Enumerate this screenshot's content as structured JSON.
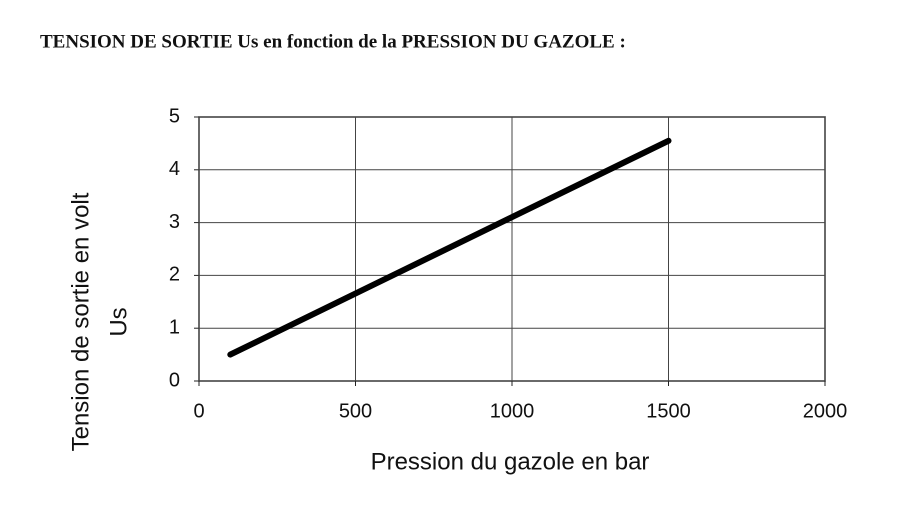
{
  "chart_data": {
    "type": "line",
    "title": "TENSION DE SORTIE Us en fonction de la PRESSION DU GAZOLE :",
    "x_label": "Pression du gazole en bar",
    "y_label": [
      "Tension de sortie en volt",
      "Us"
    ],
    "x": [
      100,
      1500
    ],
    "series": [
      {
        "color": "#000000",
        "values": [
          0.5,
          4.55
        ]
      }
    ],
    "xlim": [
      0,
      2000
    ],
    "xticks": [
      0,
      500,
      1000,
      1500,
      2000
    ],
    "ylim": [
      0,
      5
    ],
    "yticks": [
      0,
      1,
      2,
      3,
      4,
      5
    ],
    "grid": true
  }
}
